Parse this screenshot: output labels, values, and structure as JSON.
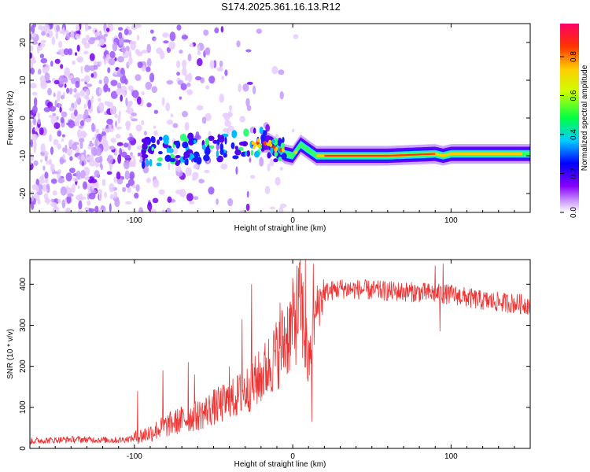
{
  "page": {
    "title": "S174.2025.361.16.13.R12"
  },
  "colorbar": {
    "label": "Normalized spectral amplitude",
    "ticks": [
      "0.0",
      "0.2",
      "0.4",
      "0.6",
      "0.8"
    ],
    "range": [
      0,
      0.97
    ],
    "colors": [
      "#ffffff",
      "#8800ff",
      "#0000ff",
      "#00ccff",
      "#00ff44",
      "#ccff00",
      "#ffcc00",
      "#ff3300",
      "#ff0066"
    ]
  },
  "chart_data": [
    {
      "type": "heatmap",
      "title": "S174.2025.361.16.13.R12",
      "xlabel": "Height of straight line (km)",
      "ylabel": "Frequency (Hz)",
      "xlim": [
        -166,
        150
      ],
      "ylim": [
        -25,
        25
      ],
      "xticks": [
        "-100",
        "0",
        "100"
      ],
      "xtick_values": [
        -100,
        0,
        100
      ],
      "yticks": [
        "-20",
        "-10",
        "0",
        "10",
        "20"
      ],
      "ytick_values": [
        -20,
        -10,
        0,
        10,
        20
      ],
      "ridge": [
        {
          "x": -90,
          "f": -9
        },
        {
          "x": -70,
          "f": -8.5
        },
        {
          "x": -50,
          "f": -8
        },
        {
          "x": -30,
          "f": -7
        },
        {
          "x": -15,
          "f": -6.5
        },
        {
          "x": -10,
          "f": -8
        },
        {
          "x": -5,
          "f": -9.5
        },
        {
          "x": 0,
          "f": -10
        },
        {
          "x": 5,
          "f": -7
        },
        {
          "x": 10,
          "f": -8.5
        },
        {
          "x": 15,
          "f": -10
        },
        {
          "x": 20,
          "f": -10
        },
        {
          "x": 60,
          "f": -10
        },
        {
          "x": 90,
          "f": -9.5
        },
        {
          "x": 95,
          "f": -10
        },
        {
          "x": 100,
          "f": -9.5
        },
        {
          "x": 150,
          "f": -9.5
        }
      ]
    },
    {
      "type": "line",
      "xlabel": "Height of straight line (km)",
      "ylabel": "SNR (10 * v/v)",
      "xlim": [
        -166,
        150
      ],
      "ylim": [
        0,
        460
      ],
      "xticks": [
        "-100",
        "0",
        "100"
      ],
      "xtick_values": [
        -100,
        0,
        100
      ],
      "yticks": [
        "0",
        "100",
        "200",
        "300",
        "400"
      ],
      "ytick_values": [
        0,
        100,
        200,
        300,
        400
      ],
      "series": [
        {
          "name": "SNR",
          "color": "#ee3333",
          "x": [
            -166,
            -140,
            -110,
            -100,
            -90,
            -80,
            -70,
            -60,
            -50,
            -40,
            -30,
            -20,
            -10,
            0,
            5,
            10,
            15,
            20,
            30,
            50,
            80,
            100,
            120,
            150
          ],
          "y": [
            18,
            22,
            20,
            25,
            38,
            55,
            70,
            80,
            100,
            115,
            140,
            175,
            230,
            300,
            360,
            200,
            340,
            380,
            390,
            385,
            380,
            375,
            360,
            350
          ],
          "spikes": [
            {
              "x": -98,
              "y": 140
            },
            {
              "x": -82,
              "y": 190
            },
            {
              "x": -66,
              "y": 210
            },
            {
              "x": -62,
              "y": 180
            },
            {
              "x": -40,
              "y": 200
            },
            {
              "x": -32,
              "y": 315
            },
            {
              "x": -26,
              "y": 400
            },
            {
              "x": -8,
              "y": 355
            },
            {
              "x": 8,
              "y": 460
            },
            {
              "x": 12,
              "y": 65
            },
            {
              "x": 13,
              "y": 450
            },
            {
              "x": 90,
              "y": 445
            },
            {
              "x": 95,
              "y": 450
            },
            {
              "x": 93,
              "y": 285
            }
          ]
        }
      ]
    }
  ]
}
